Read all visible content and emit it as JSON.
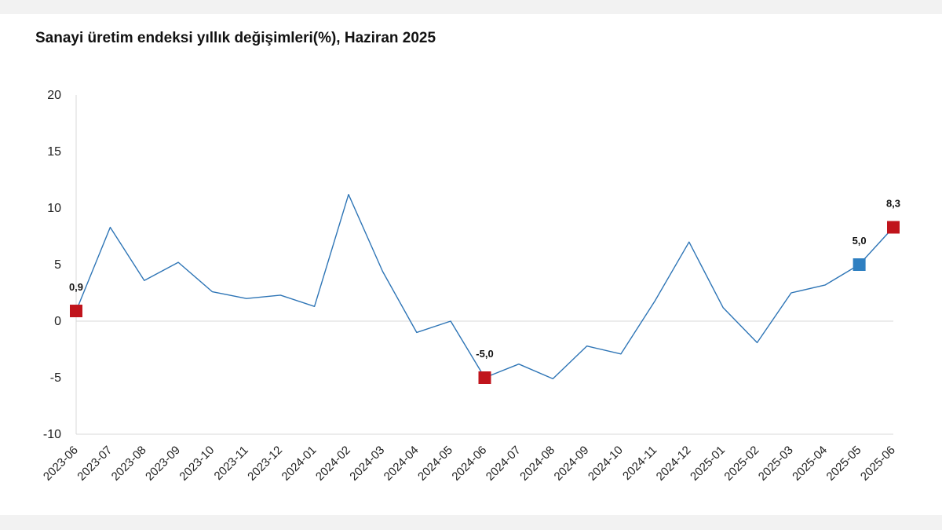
{
  "chart_data": {
    "type": "line",
    "title": "Sanayi üretim endeksi yıllık değişimleri(%), Haziran 2025",
    "xlabel": "",
    "ylabel": "",
    "ylim": [
      -10,
      20
    ],
    "yticks": [
      20,
      15,
      10,
      5,
      0,
      -5,
      -10
    ],
    "categories": [
      "2023-06",
      "2023-07",
      "2023-08",
      "2023-09",
      "2023-10",
      "2023-11",
      "2023-12",
      "2024-01",
      "2024-02",
      "2024-03",
      "2024-04",
      "2024-05",
      "2024-06",
      "2024-07",
      "2024-08",
      "2024-09",
      "2024-10",
      "2024-11",
      "2024-12",
      "2025-01",
      "2025-02",
      "2025-03",
      "2025-04",
      "2025-05",
      "2025-06"
    ],
    "series": [
      {
        "values": [
          0.9,
          8.3,
          3.6,
          5.2,
          2.6,
          2.0,
          2.3,
          1.3,
          11.2,
          4.4,
          -1.0,
          0.0,
          -5.0,
          -3.8,
          -5.1,
          -2.2,
          -2.9,
          1.8,
          7.0,
          1.2,
          -1.9,
          2.5,
          3.2,
          5.0,
          8.3
        ],
        "color": "#2e75b6"
      }
    ],
    "markers": [
      {
        "index": 0,
        "label": "0,9",
        "color": "#c0141c"
      },
      {
        "index": 12,
        "label": "-5,0",
        "color": "#c0141c"
      },
      {
        "index": 23,
        "label": "5,0",
        "color": "#2e7fc1"
      },
      {
        "index": 24,
        "label": "8,3",
        "color": "#c0141c"
      }
    ],
    "grid": false,
    "zero_line": true
  }
}
